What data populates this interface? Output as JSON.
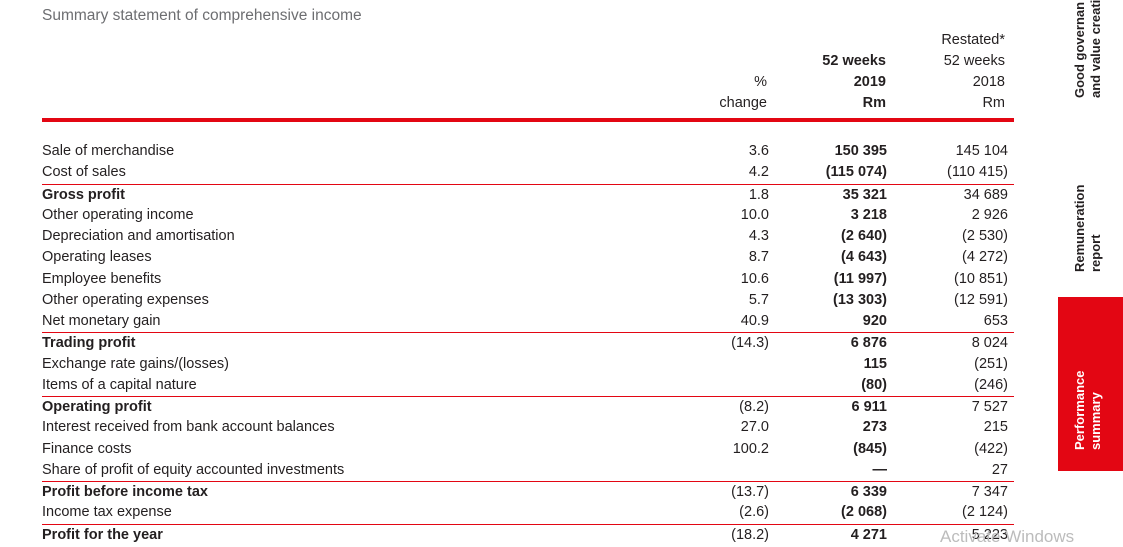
{
  "title": "Summary statement of comprehensive income",
  "headers": {
    "change": [
      "%",
      "change"
    ],
    "y2019": [
      "52 weeks",
      "2019",
      "Rm"
    ],
    "y2018": [
      "Restated*",
      "52 weeks",
      "2018",
      "Rm"
    ]
  },
  "rows": [
    {
      "label": "Sale of merchandise",
      "change": "3.6",
      "y2019": "150 395",
      "y2018": "145 104",
      "bold": false,
      "sep": false
    },
    {
      "label": "Cost of sales",
      "change": "4.2",
      "y2019": "(115 074)",
      "y2018": "(110 415)",
      "bold": false,
      "sep": false
    },
    {
      "label": "Gross profit",
      "change": "1.8",
      "y2019": "35 321",
      "y2018": "34 689",
      "bold": true,
      "sep": true
    },
    {
      "label": "Other operating income",
      "change": "10.0",
      "y2019": "3 218",
      "y2018": "2 926",
      "bold": false,
      "sep": false
    },
    {
      "label": "Depreciation and amortisation",
      "change": "4.3",
      "y2019": "(2 640)",
      "y2018": "(2 530)",
      "bold": false,
      "sep": false
    },
    {
      "label": "Operating leases",
      "change": "8.7",
      "y2019": "(4 643)",
      "y2018": "(4 272)",
      "bold": false,
      "sep": false
    },
    {
      "label": "Employee benefits",
      "change": "10.6",
      "y2019": "(11 997)",
      "y2018": "(10 851)",
      "bold": false,
      "sep": false
    },
    {
      "label": "Other operating expenses",
      "change": "5.7",
      "y2019": "(13 303)",
      "y2018": "(12 591)",
      "bold": false,
      "sep": false
    },
    {
      "label": "Net monetary gain",
      "change": "40.9",
      "y2019": "920",
      "y2018": "653",
      "bold": false,
      "sep": false
    },
    {
      "label": "Trading profit",
      "change": "(14.3)",
      "y2019": "6 876",
      "y2018": "8 024",
      "bold": true,
      "sep": true
    },
    {
      "label": "Exchange rate gains/(losses)",
      "change": "",
      "y2019": "115",
      "y2018": "(251)",
      "bold": false,
      "sep": false
    },
    {
      "label": "Items of a capital nature",
      "change": "",
      "y2019": "(80)",
      "y2018": "(246)",
      "bold": false,
      "sep": false
    },
    {
      "label": "Operating profit",
      "change": "(8.2)",
      "y2019": "6 911",
      "y2018": "7 527",
      "bold": true,
      "sep": true
    },
    {
      "label": "Interest received from bank account balances",
      "change": "27.0",
      "y2019": "273",
      "y2018": "215",
      "bold": false,
      "sep": false
    },
    {
      "label": "Finance costs",
      "change": "100.2",
      "y2019": "(845)",
      "y2018": "(422)",
      "bold": false,
      "sep": false
    },
    {
      "label": "Share of profit of equity accounted investments",
      "change": "",
      "y2019": "—",
      "y2018": "27",
      "bold": false,
      "sep": false
    },
    {
      "label": "Profit before income tax",
      "change": "(13.7)",
      "y2019": "6 339",
      "y2018": "7 347",
      "bold": true,
      "sep": true
    },
    {
      "label": "Income tax expense",
      "change": "(2.6)",
      "y2019": "(2 068)",
      "y2018": "(2 124)",
      "bold": false,
      "sep": false
    },
    {
      "label": "Profit for the year",
      "change": "(18.2)",
      "y2019": "4 271",
      "y2018": "5 223",
      "bold": true,
      "sep": true
    }
  ],
  "side_tabs": {
    "governance": [
      "Good governan",
      "and value creati"
    ],
    "remuneration": [
      "Remuneration",
      "report"
    ],
    "performance": [
      "Performance",
      "summary"
    ]
  },
  "watermark": "Activate Windows",
  "colors": {
    "accent": "#e30613",
    "text": "#231f20",
    "title": "#6d6e71"
  }
}
